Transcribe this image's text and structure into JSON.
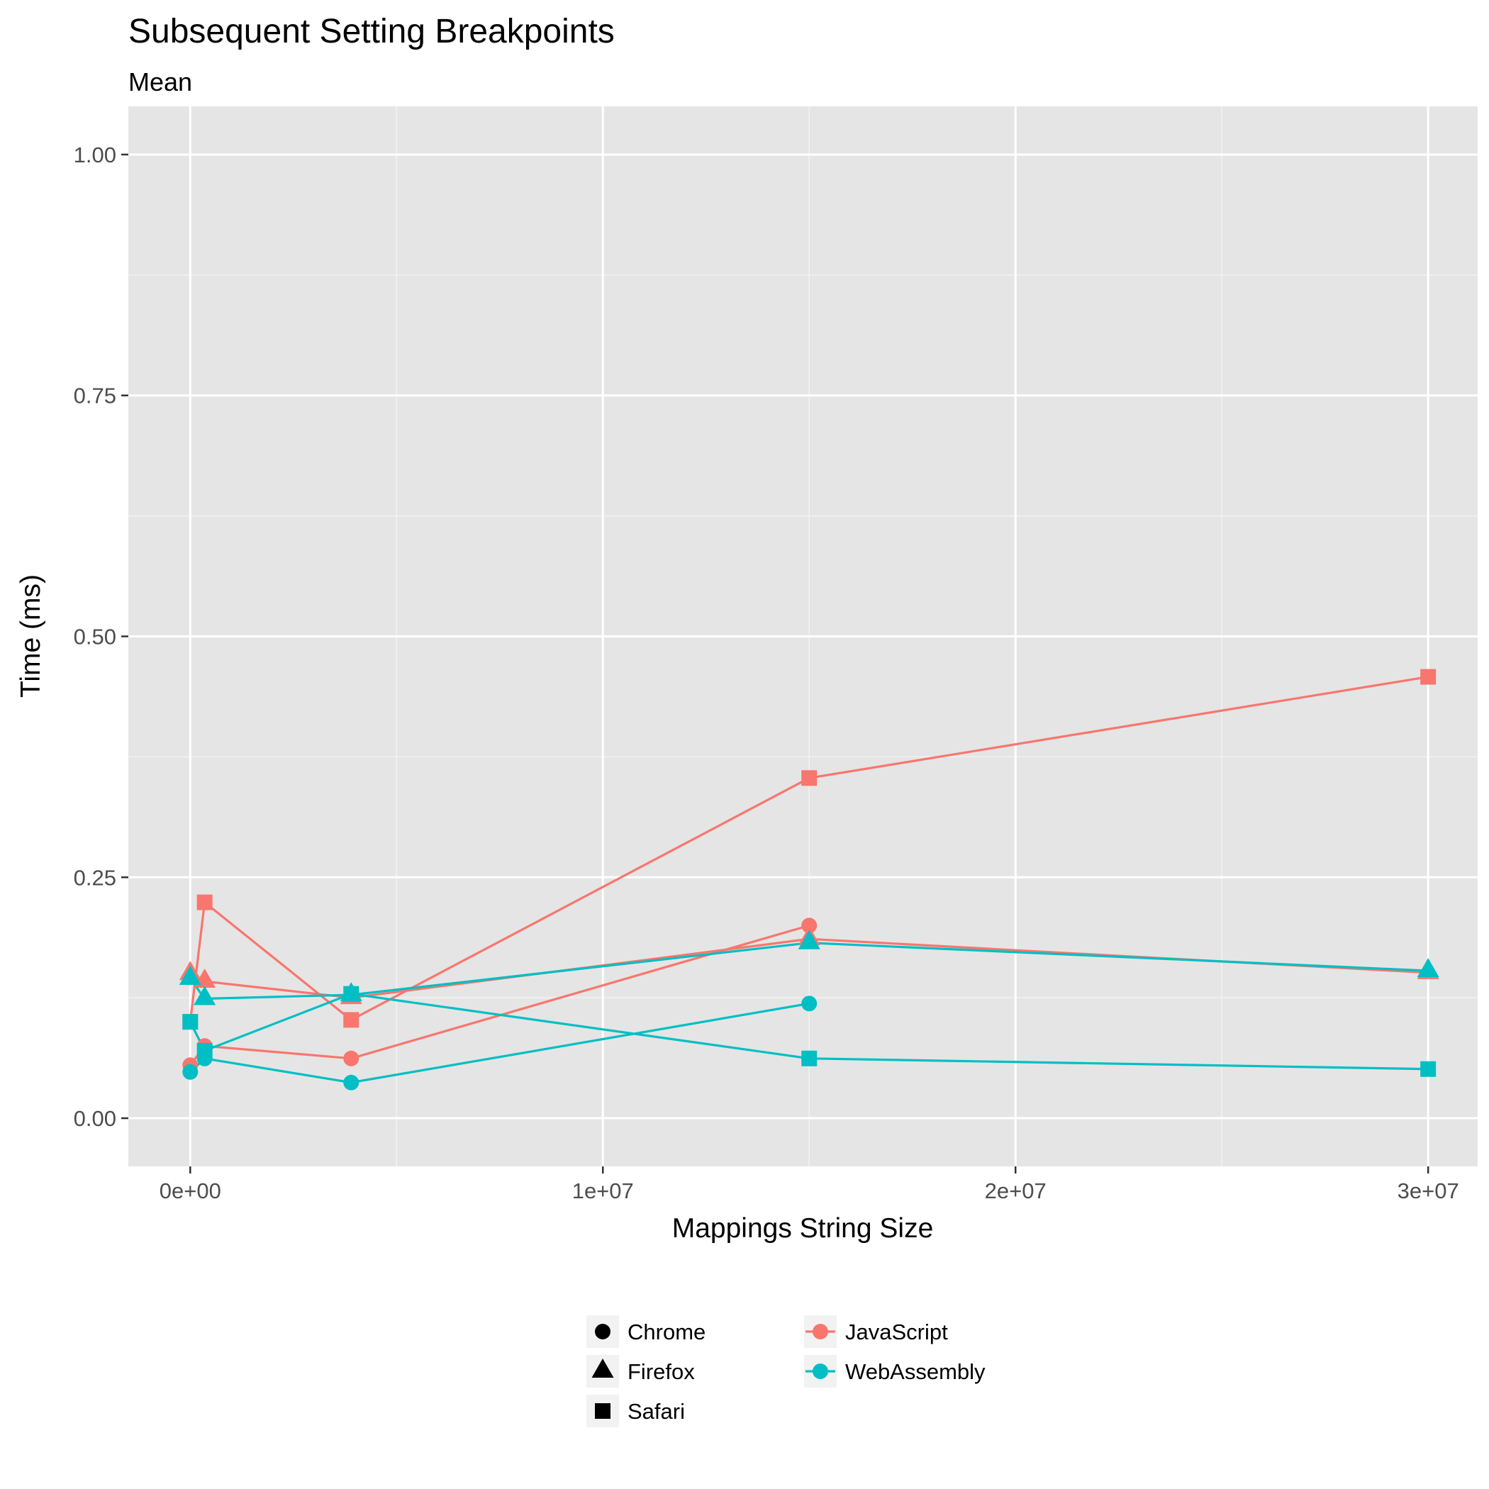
{
  "chart_data": {
    "type": "line",
    "title": "Subsequent Setting Breakpoints",
    "subtitle": "Mean",
    "xlabel": "Mappings String Size",
    "ylabel": "Time (ms)",
    "xlim": [
      -1500000,
      31200000
    ],
    "ylim": [
      -0.05,
      1.05
    ],
    "x_ticks": [
      0,
      10000000,
      20000000,
      30000000
    ],
    "x_tick_labels": [
      "0e+00",
      "1e+07",
      "2e+07",
      "3e+07"
    ],
    "y_ticks": [
      0,
      0.25,
      0.5,
      0.75,
      1
    ],
    "y_tick_labels": [
      "0.00",
      "0.25",
      "0.50",
      "0.75",
      "1.00"
    ],
    "grid": true,
    "legend_placement": "bottom",
    "shape_legend": [
      {
        "label": "Chrome",
        "shape": "circle"
      },
      {
        "label": "Firefox",
        "shape": "triangle"
      },
      {
        "label": "Safari",
        "shape": "square"
      }
    ],
    "color_legend": [
      {
        "label": "JavaScript",
        "color": "#F8766D"
      },
      {
        "label": "WebAssembly",
        "color": "#00BFC4"
      }
    ],
    "series": [
      {
        "implementation": "JavaScript",
        "browser": "Chrome",
        "color": "#F8766D",
        "shape": "circle",
        "x": [
          0,
          350000,
          3900000,
          15000000
        ],
        "y": [
          0.055,
          0.075,
          0.062,
          0.2
        ]
      },
      {
        "implementation": "JavaScript",
        "browser": "Firefox",
        "color": "#F8766D",
        "shape": "triangle",
        "x": [
          0,
          350000,
          3900000,
          15000000,
          30000000
        ],
        "y": [
          0.15,
          0.142,
          0.125,
          0.186,
          0.151
        ]
      },
      {
        "implementation": "JavaScript",
        "browser": "Safari",
        "color": "#F8766D",
        "shape": "square",
        "x": [
          0,
          350000,
          3900000,
          15000000,
          30000000
        ],
        "y": [
          0.1,
          0.224,
          0.102,
          0.353,
          0.458
        ]
      },
      {
        "implementation": "WebAssembly",
        "browser": "Chrome",
        "color": "#00BFC4",
        "shape": "circle",
        "x": [
          0,
          350000,
          3900000,
          15000000
        ],
        "y": [
          0.048,
          0.062,
          0.037,
          0.119
        ]
      },
      {
        "implementation": "WebAssembly",
        "browser": "Firefox",
        "color": "#00BFC4",
        "shape": "triangle",
        "x": [
          0,
          350000,
          3900000,
          15000000,
          30000000
        ],
        "y": [
          0.145,
          0.124,
          0.128,
          0.182,
          0.153
        ]
      },
      {
        "implementation": "WebAssembly",
        "browser": "Safari",
        "color": "#00BFC4",
        "shape": "square",
        "x": [
          0,
          350000,
          3900000,
          15000000,
          30000000
        ],
        "y": [
          0.1,
          0.07,
          0.129,
          0.062,
          0.051
        ]
      }
    ]
  }
}
